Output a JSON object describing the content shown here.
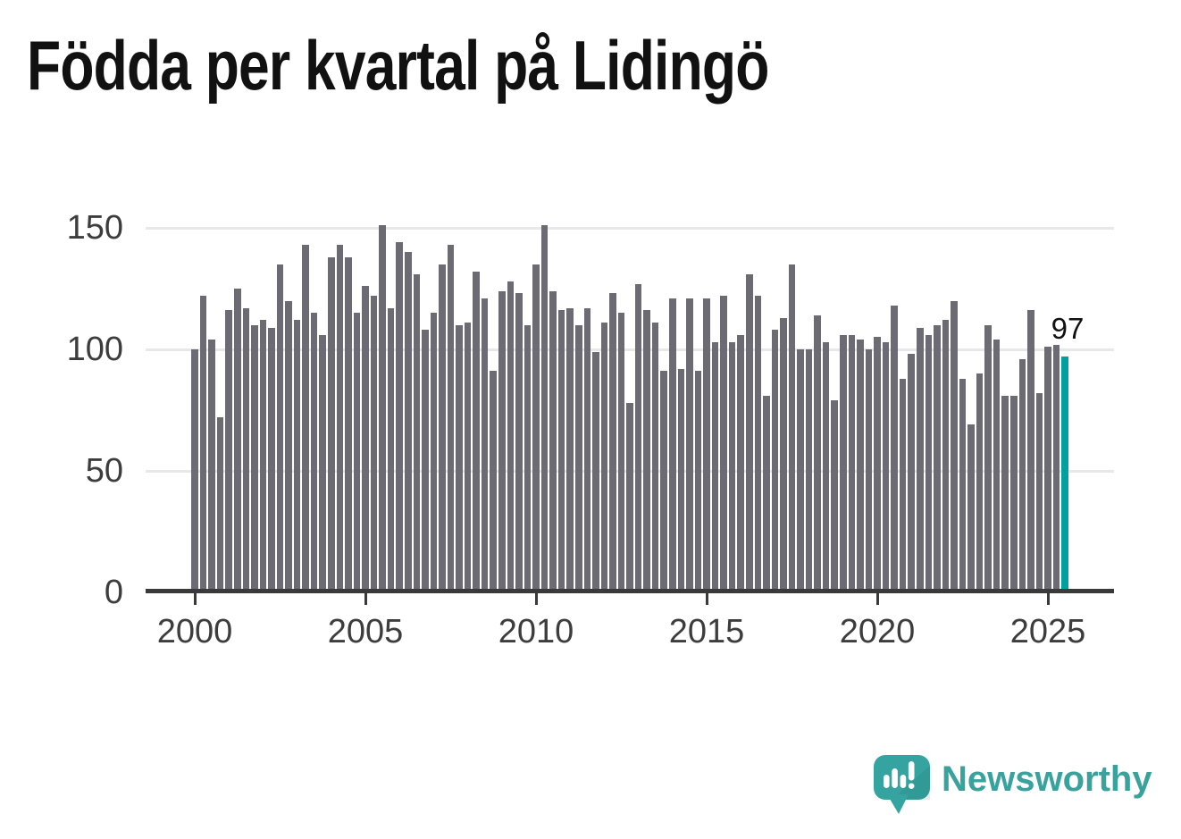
{
  "title": "Födda per kvartal på Lidingö",
  "annotation": {
    "value_label": "97"
  },
  "branding": {
    "name": "Newsworthy"
  },
  "colors": {
    "bar": "#6c6b73",
    "highlight": "#00a19e",
    "grid": "#e8e8e8",
    "axis": "#3a3a3a",
    "tick_text": "#3d3d3d",
    "title_text": "#111111",
    "annotation_text": "#111111",
    "logo_teal": "#3aa29c",
    "logo_bubble": "#35a3a0",
    "background": "#ffffff"
  },
  "chart_data": {
    "type": "bar",
    "title": "Födda per kvartal på Lidingö",
    "x_unit": "quarter",
    "x_start": "2000 Q1",
    "x_end": "2025 Q3",
    "frequency": "quarterly",
    "x_tick_labels": [
      "2000",
      "2005",
      "2010",
      "2015",
      "2020",
      "2025"
    ],
    "y_ticks": [
      0,
      50,
      100,
      150
    ],
    "y_tick_labels": [
      "0",
      "50",
      "100",
      "150"
    ],
    "ylim": [
      0,
      160
    ],
    "grid": "horizontal-light",
    "legend": "none",
    "series": [
      {
        "name": "Födda per kvartal",
        "values": [
          100,
          122,
          104,
          72,
          116,
          125,
          117,
          110,
          112,
          109,
          135,
          120,
          112,
          143,
          115,
          106,
          138,
          143,
          138,
          115,
          126,
          122,
          151,
          117,
          144,
          140,
          131,
          108,
          115,
          135,
          143,
          110,
          111,
          132,
          121,
          91,
          124,
          128,
          123,
          110,
          135,
          151,
          124,
          116,
          117,
          110,
          117,
          99,
          111,
          123,
          115,
          78,
          127,
          116,
          111,
          91,
          121,
          92,
          121,
          91,
          121,
          103,
          122,
          103,
          106,
          131,
          122,
          81,
          108,
          113,
          135,
          100,
          100,
          114,
          103,
          79,
          106,
          106,
          104,
          100,
          105,
          103,
          118,
          88,
          98,
          109,
          106,
          110,
          112,
          120,
          88,
          69,
          90,
          110,
          104,
          81,
          81,
          96,
          116,
          82,
          101,
          102,
          97
        ]
      }
    ],
    "highlight": {
      "index": 102,
      "quarter": "2025 Q3",
      "value": 97,
      "label": "97"
    }
  }
}
